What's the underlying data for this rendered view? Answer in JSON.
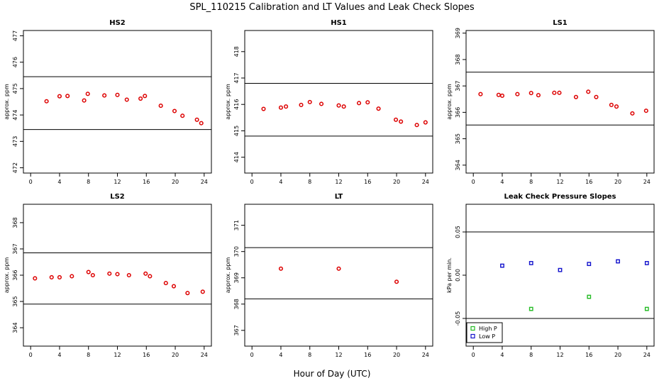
{
  "figure": {
    "title": "SPL_110215  Calibration and LT Values and Leak Check Slopes",
    "xlabel": "Hour of Day (UTC)"
  },
  "chart_data": [
    {
      "type": "scatter",
      "title": "HS2",
      "xlabel": "Hour of Day (UTC)",
      "ylabel": "approx. ppm",
      "xlim": [
        -1,
        25
      ],
      "ylim": [
        471.8,
        477.2
      ],
      "xticks": [
        0,
        4,
        8,
        12,
        16,
        20,
        24
      ],
      "yticks": [
        472,
        473,
        474,
        475,
        476,
        477
      ],
      "hlines": [
        475.45,
        473.45
      ],
      "series": [
        {
          "name": "HS2",
          "color": "#dd0000",
          "x": [
            2.2,
            4.0,
            5.1,
            7.4,
            7.9,
            10.2,
            12.0,
            13.3,
            15.2,
            15.8,
            18.0,
            19.9,
            21.0,
            23.0,
            23.6
          ],
          "y": [
            474.52,
            474.71,
            474.72,
            474.55,
            474.8,
            474.74,
            474.76,
            474.58,
            474.62,
            474.72,
            474.35,
            474.15,
            473.97,
            473.82,
            473.69
          ]
        }
      ]
    },
    {
      "type": "scatter",
      "title": "HS1",
      "xlabel": "Hour of Day (UTC)",
      "ylabel": "approx. ppm",
      "xlim": [
        -1,
        25
      ],
      "ylim": [
        413.4,
        418.8
      ],
      "xticks": [
        0,
        4,
        8,
        12,
        16,
        20,
        24
      ],
      "yticks": [
        414,
        415,
        416,
        417,
        418
      ],
      "hlines": [
        416.8,
        414.8
      ],
      "series": [
        {
          "name": "HS1",
          "color": "#dd0000",
          "x": [
            1.6,
            4.0,
            4.7,
            6.8,
            8.0,
            9.6,
            12.0,
            12.7,
            14.8,
            16.0,
            17.5,
            19.9,
            20.6,
            22.8,
            24.0
          ],
          "y": [
            415.83,
            415.88,
            415.92,
            415.98,
            416.09,
            416.02,
            415.96,
            415.92,
            416.05,
            416.08,
            415.84,
            415.42,
            415.35,
            415.22,
            415.32
          ]
        }
      ]
    },
    {
      "type": "scatter",
      "title": "LS1",
      "xlabel": "Hour of Day (UTC)",
      "ylabel": "approx. ppm",
      "xlim": [
        -1,
        25
      ],
      "ylim": [
        363.7,
        369.1
      ],
      "xticks": [
        0,
        4,
        8,
        12,
        16,
        20,
        24
      ],
      "yticks": [
        364,
        365,
        366,
        367,
        368,
        369
      ],
      "hlines": [
        367.52,
        365.52
      ],
      "series": [
        {
          "name": "LS1",
          "color": "#dd0000",
          "x": [
            1.0,
            3.5,
            4.0,
            6.1,
            8.0,
            9.0,
            11.2,
            11.9,
            14.2,
            15.9,
            17.0,
            19.1,
            19.8,
            22.0,
            23.9
          ],
          "y": [
            366.69,
            366.66,
            366.63,
            366.69,
            366.73,
            366.65,
            366.74,
            366.74,
            366.58,
            366.78,
            366.58,
            366.28,
            366.22,
            365.96,
            366.06
          ]
        }
      ]
    },
    {
      "type": "scatter",
      "title": "LS2",
      "xlabel": "Hour of Day (UTC)",
      "ylabel": "approx. ppm",
      "xlim": [
        -1,
        25
      ],
      "ylim": [
        363.3,
        368.7
      ],
      "xticks": [
        0,
        4,
        8,
        12,
        16,
        20,
        24
      ],
      "yticks": [
        364,
        365,
        366,
        367,
        368
      ],
      "hlines": [
        366.85,
        364.9
      ],
      "series": [
        {
          "name": "LS2",
          "color": "#dd0000",
          "x": [
            0.6,
            2.9,
            4.0,
            5.7,
            8.0,
            8.6,
            10.9,
            12.0,
            13.6,
            15.9,
            16.5,
            18.7,
            19.8,
            21.7,
            23.8
          ],
          "y": [
            365.88,
            365.92,
            365.92,
            365.96,
            366.12,
            366.0,
            366.06,
            366.04,
            366.0,
            366.06,
            365.96,
            365.7,
            365.58,
            365.32,
            365.37
          ]
        }
      ]
    },
    {
      "type": "scatter",
      "title": "LT",
      "xlabel": "Hour of Day (UTC)",
      "ylabel": "approx. ppm",
      "xlim": [
        -1,
        25
      ],
      "ylim": [
        366.4,
        371.8
      ],
      "xticks": [
        0,
        4,
        8,
        12,
        16,
        20,
        24
      ],
      "yticks": [
        367,
        368,
        369,
        370,
        371
      ],
      "hlines": [
        370.15,
        368.2
      ],
      "series": [
        {
          "name": "LT",
          "color": "#dd0000",
          "x": [
            4.0,
            12.0,
            20.0
          ],
          "y": [
            369.35,
            369.35,
            368.85
          ]
        }
      ]
    },
    {
      "type": "scatter",
      "title": "Leak Check Pressure Slopes",
      "xlabel": "Hour of Day (UTC)",
      "ylabel": "kPa per min.",
      "xlim": [
        -1,
        25
      ],
      "ylim": [
        -0.082,
        0.082
      ],
      "xticks": [
        0,
        4,
        8,
        12,
        16,
        20,
        24
      ],
      "yticks": [
        -0.05,
        0.0,
        0.05
      ],
      "ytick_labels": [
        "-0.05",
        "0.00",
        "0.05"
      ],
      "hlines": [
        0.05,
        -0.05
      ],
      "legend": {
        "position": "bottom-left",
        "entries": [
          "High P",
          "Low P"
        ]
      },
      "series": [
        {
          "name": "High P",
          "color": "#22bb22",
          "marker": "square",
          "x": [
            8.0,
            16.0,
            24.0
          ],
          "y": [
            -0.039,
            -0.025,
            -0.039
          ]
        },
        {
          "name": "Low P",
          "color": "#1111cc",
          "marker": "square",
          "x": [
            4.0,
            8.0,
            12.0,
            16.0,
            20.0,
            24.0
          ],
          "y": [
            0.011,
            0.014,
            0.006,
            0.013,
            0.016,
            0.014
          ]
        }
      ]
    }
  ]
}
